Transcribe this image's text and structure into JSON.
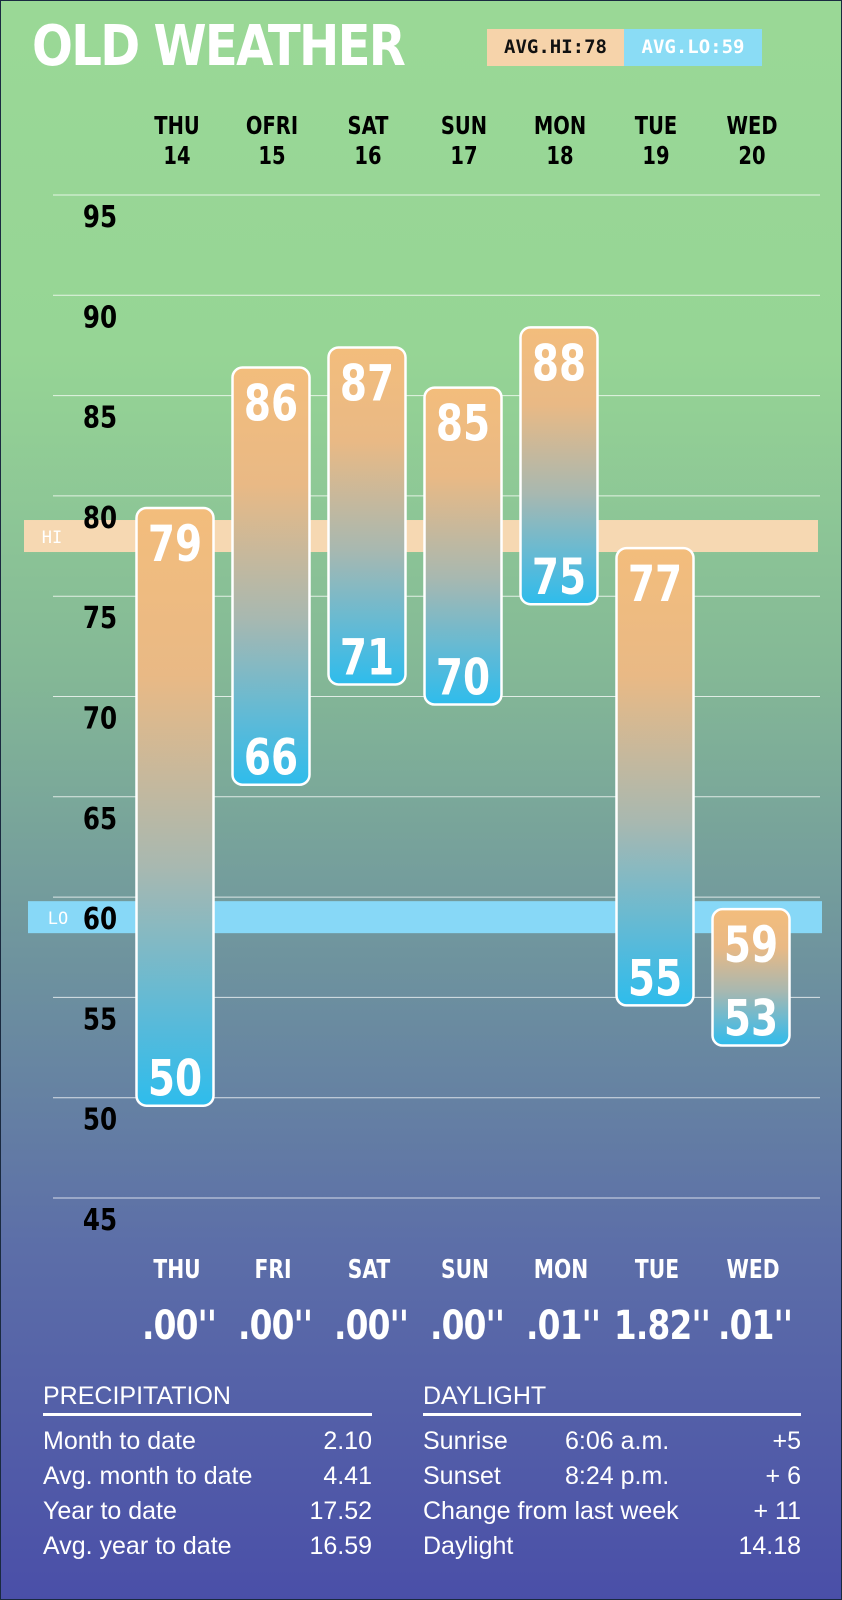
{
  "title": "OLD WEATHER",
  "averages": {
    "hi_label": "AVG.HI:78",
    "lo_label": "AVG.LO:59",
    "hi": 78,
    "lo": 59,
    "hi_band_label": "HI",
    "lo_band_label": "LO"
  },
  "days": [
    {
      "name": "THU",
      "date": "14"
    },
    {
      "name": "OFRI",
      "date": "15"
    },
    {
      "name": "SAT",
      "date": "16"
    },
    {
      "name": "SUN",
      "date": "17"
    },
    {
      "name": "MON",
      "date": "18"
    },
    {
      "name": "TUE",
      "date": "19"
    },
    {
      "name": "WED",
      "date": "20"
    }
  ],
  "chart_data": {
    "type": "bar",
    "categories": [
      "THU 14",
      "FRI 15",
      "SAT 16",
      "SUN 17",
      "MON 18",
      "TUE 19",
      "WED 20"
    ],
    "series": [
      {
        "name": "HI",
        "values": [
          79,
          86,
          87,
          85,
          88,
          77,
          59
        ]
      },
      {
        "name": "LO",
        "values": [
          50,
          66,
          71,
          70,
          75,
          55,
          53
        ]
      }
    ],
    "y_ticks": [
      95,
      90,
      85,
      80,
      75,
      70,
      65,
      60,
      55,
      50,
      45
    ],
    "ylim": [
      45,
      95
    ],
    "grid": true,
    "colors": {
      "high": "#f3bd7c",
      "low": "#34bdea",
      "hi_band": "#f6d8b2",
      "lo_band": "#87d8f7"
    }
  },
  "precipitation_daily": {
    "days": [
      "THU",
      "FRI",
      "SAT",
      "SUN",
      "MON",
      "TUE",
      "WED"
    ],
    "values": [
      ".00''",
      ".00''",
      ".00''",
      ".00''",
      ".01''",
      "1.82''",
      ".01''"
    ]
  },
  "precipitation": {
    "heading": "PRECIPITATION",
    "rows": [
      {
        "label": "Month to date",
        "value": "2.10"
      },
      {
        "label": "Avg. month to date",
        "value": "4.41"
      },
      {
        "label": "Year to date",
        "value": "17.52"
      },
      {
        "label": "Avg. year to date",
        "value": "16.59"
      }
    ]
  },
  "daylight": {
    "heading": "DAYLIGHT",
    "rows": [
      {
        "label": "Sunrise",
        "time": "6:06 a.m.",
        "change": "+5"
      },
      {
        "label": "Sunset",
        "time": "8:24 p.m.",
        "change": "+ 6"
      },
      {
        "label": "Change from last week",
        "time": "",
        "change": "+ 11"
      },
      {
        "label": "Daylight",
        "time": "",
        "change": "14.18"
      }
    ]
  }
}
